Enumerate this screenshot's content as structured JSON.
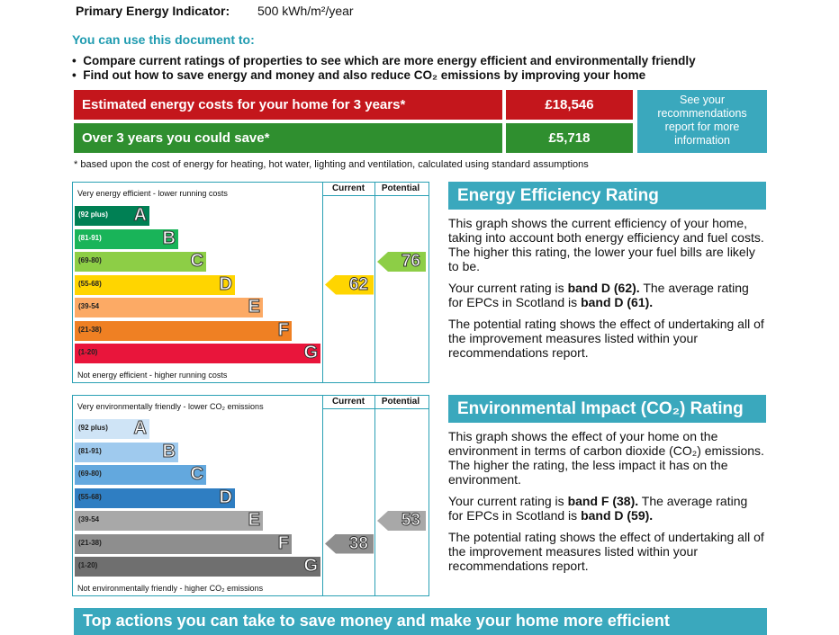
{
  "header": {
    "label": "Primary Energy Indicator:",
    "value": "500 kWh/m²/year"
  },
  "uses": {
    "title": "You can use this document to:",
    "items": [
      "Compare current ratings of properties to see which are more energy efficient and environmentally friendly",
      "Find out how to save energy and money and also reduce CO₂ emissions by improving your home"
    ]
  },
  "costs": {
    "rows": [
      {
        "label": "Estimated energy costs for your home for 3 years*",
        "value": "£18,546"
      },
      {
        "label": "Over 3 years you could save*",
        "value": "£5,718"
      }
    ],
    "link": "See your recommendations report for more information",
    "note": "* based upon the cost of energy for heating, hot water, lighting and ventilation, calculated using standard assumptions"
  },
  "charts": [
    {
      "top": "Very energy efficient - lower running costs",
      "bottom": "Not energy efficient - higher running costs",
      "columns": [
        "Current",
        "Potential"
      ],
      "bands": [
        {
          "range": "(92 plus)",
          "letter": "A",
          "color": "#008054"
        },
        {
          "range": "(81-91)",
          "letter": "B",
          "color": "#19b459"
        },
        {
          "range": "(69-80)",
          "letter": "C",
          "color": "#8dce46"
        },
        {
          "range": "(55-68)",
          "letter": "D",
          "color": "#ffd500"
        },
        {
          "range": "(39-54",
          "letter": "E",
          "color": "#fcaa65"
        },
        {
          "range": "(21-38)",
          "letter": "F",
          "color": "#ef8023"
        },
        {
          "range": "(1-20)",
          "letter": "G",
          "color": "#e9153b"
        }
      ],
      "current": "62",
      "potential": "76",
      "title": "Energy Efficiency Rating",
      "paragraphs": [
        [
          "This graph shows the current efficiency of your home, taking into account both energy efficiency and fuel costs. The higher this rating, the lower your fuel bills are likely to be."
        ],
        [
          "Your current rating is ",
          "band D (62).",
          " The average rating for EPCs in Scotland is ",
          "band D (61)."
        ],
        [
          "The potential rating shows the effect of undertaking all of the improvement measures listed within your recommendations report."
        ]
      ]
    },
    {
      "top": "Very environmentally friendly - lower CO₂ emissions",
      "bottom": "Not environmentally friendly - higher CO₂ emissions",
      "columns": [
        "Current",
        "Potential"
      ],
      "bands": [
        {
          "range": "(92 plus)",
          "letter": "A",
          "color": "#cfe4f6"
        },
        {
          "range": "(81-91)",
          "letter": "B",
          "color": "#9fcaee"
        },
        {
          "range": "(69-80)",
          "letter": "C",
          "color": "#63a8de"
        },
        {
          "range": "(55-68)",
          "letter": "D",
          "color": "#2f7ec2"
        },
        {
          "range": "(39-54",
          "letter": "E",
          "color": "#a8a8a8"
        },
        {
          "range": "(21-38)",
          "letter": "F",
          "color": "#8e8e8e"
        },
        {
          "range": "(1-20)",
          "letter": "G",
          "color": "#6f6f6f"
        }
      ],
      "current": "38",
      "potential": "53",
      "title": "Environmental Impact (CO₂) Rating",
      "paragraphs": [
        [
          "This graph shows the effect of your home on the environment in terms of carbon dioxide (CO₂) emissions. The higher the rating, the less impact it has on the environment."
        ],
        [
          "Your current rating is ",
          "band F (38).",
          " The average rating for EPCs in Scotland is ",
          "band D (59)."
        ],
        [
          "The potential rating shows the effect of undertaking all of the improvement measures listed within your recommendations report."
        ]
      ]
    }
  ],
  "footer": "Top actions you can take to save money and make your home more efficient"
}
